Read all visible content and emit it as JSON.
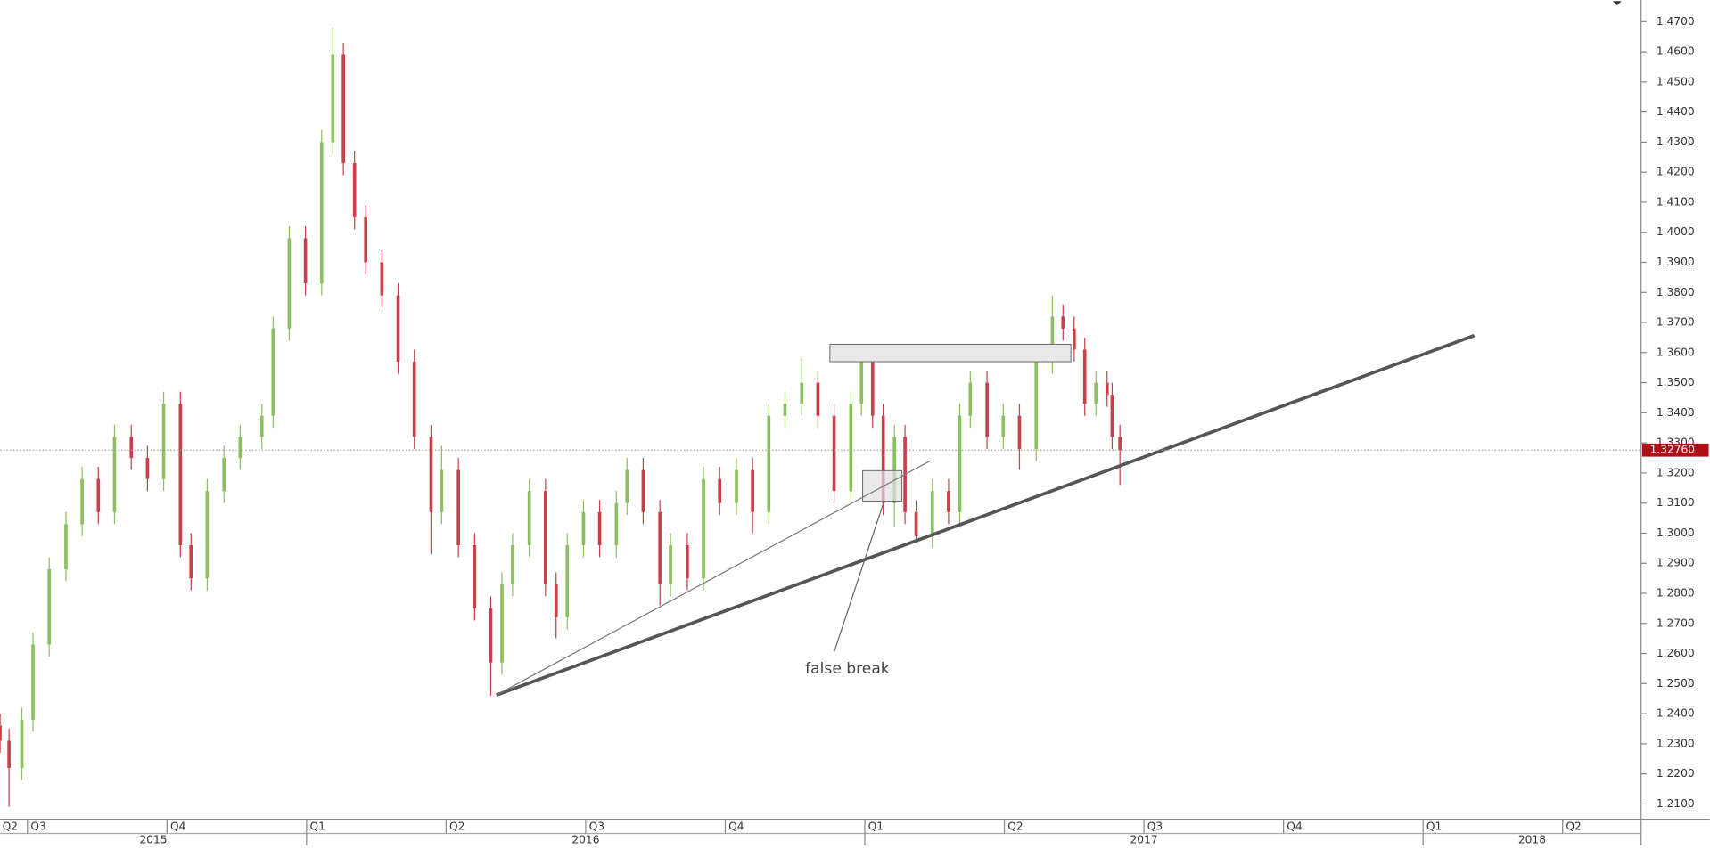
{
  "chart_data": {
    "type": "ohlc",
    "x": [
      2015.451,
      2015.467,
      2015.49,
      2015.51,
      2015.539,
      2015.569,
      2015.598,
      2015.627,
      2015.656,
      2015.686,
      2015.715,
      2015.744,
      2015.774,
      2015.793,
      2015.822,
      2015.852,
      2015.881,
      2015.92,
      2015.94,
      2015.969,
      2015.998,
      2016.027,
      2016.047,
      2016.066,
      2016.086,
      2016.106,
      2016.135,
      2016.164,
      2016.193,
      2016.223,
      2016.242,
      2016.272,
      2016.301,
      2016.33,
      2016.35,
      2016.369,
      2016.399,
      2016.428,
      2016.447,
      2016.467,
      2016.496,
      2016.525,
      2016.555,
      2016.574,
      2016.603,
      2016.633,
      2016.652,
      2016.682,
      2016.711,
      2016.74,
      2016.77,
      2016.799,
      2016.828,
      2016.857,
      2016.887,
      2016.916,
      2016.945,
      2016.975,
      2016.994,
      2017.014,
      2017.033,
      2017.053,
      2017.072,
      2017.092,
      2017.121,
      2017.15,
      2017.17,
      2017.189,
      2017.219,
      2017.248,
      2017.277,
      2017.307,
      2017.336,
      2017.355,
      2017.375,
      2017.394,
      2017.414,
      2017.434,
      2017.443,
      2017.457
    ],
    "open": [
      1.236,
      1.231,
      1.222,
      1.238,
      1.263,
      1.288,
      1.303,
      1.318,
      1.307,
      1.332,
      1.325,
      1.318,
      1.343,
      1.296,
      1.285,
      1.314,
      1.325,
      1.332,
      1.339,
      1.368,
      1.398,
      1.383,
      1.43,
      1.459,
      1.423,
      1.405,
      1.39,
      1.379,
      1.357,
      1.332,
      1.307,
      1.321,
      1.296,
      1.275,
      1.257,
      1.283,
      1.296,
      1.314,
      1.283,
      1.272,
      1.296,
      1.307,
      1.296,
      1.31,
      1.321,
      1.307,
      1.283,
      1.296,
      1.285,
      1.318,
      1.31,
      1.321,
      1.307,
      1.339,
      1.343,
      1.35,
      1.339,
      1.314,
      1.343,
      1.357,
      1.339,
      1.31,
      1.332,
      1.307,
      1.299,
      1.314,
      1.307,
      1.339,
      1.35,
      1.332,
      1.339,
      1.328,
      1.357,
      1.372,
      1.368,
      1.361,
      1.343,
      1.35,
      1.346,
      1.332
    ],
    "high": [
      1.24,
      1.235,
      1.242,
      1.267,
      1.292,
      1.307,
      1.322,
      1.322,
      1.336,
      1.336,
      1.329,
      1.347,
      1.347,
      1.3,
      1.318,
      1.329,
      1.336,
      1.343,
      1.372,
      1.402,
      1.402,
      1.434,
      1.468,
      1.463,
      1.427,
      1.409,
      1.394,
      1.383,
      1.361,
      1.336,
      1.329,
      1.325,
      1.3,
      1.279,
      1.287,
      1.3,
      1.318,
      1.318,
      1.287,
      1.3,
      1.311,
      1.311,
      1.314,
      1.325,
      1.325,
      1.311,
      1.3,
      1.3,
      1.322,
      1.322,
      1.325,
      1.325,
      1.343,
      1.347,
      1.358,
      1.354,
      1.343,
      1.347,
      1.36,
      1.361,
      1.343,
      1.336,
      1.336,
      1.311,
      1.318,
      1.318,
      1.343,
      1.354,
      1.354,
      1.343,
      1.343,
      1.361,
      1.379,
      1.376,
      1.372,
      1.365,
      1.354,
      1.354,
      1.35,
      1.336
    ],
    "low": [
      1.227,
      1.209,
      1.218,
      1.234,
      1.259,
      1.284,
      1.299,
      1.303,
      1.303,
      1.321,
      1.314,
      1.314,
      1.292,
      1.281,
      1.281,
      1.31,
      1.321,
      1.328,
      1.335,
      1.364,
      1.379,
      1.379,
      1.426,
      1.419,
      1.401,
      1.386,
      1.375,
      1.353,
      1.328,
      1.293,
      1.303,
      1.292,
      1.271,
      1.246,
      1.253,
      1.279,
      1.292,
      1.279,
      1.265,
      1.268,
      1.292,
      1.292,
      1.292,
      1.306,
      1.303,
      1.276,
      1.279,
      1.281,
      1.281,
      1.306,
      1.306,
      1.3,
      1.303,
      1.335,
      1.339,
      1.335,
      1.31,
      1.31,
      1.339,
      1.335,
      1.306,
      1.302,
      1.303,
      1.297,
      1.295,
      1.303,
      1.303,
      1.335,
      1.328,
      1.328,
      1.321,
      1.324,
      1.353,
      1.364,
      1.357,
      1.339,
      1.339,
      1.342,
      1.328,
      1.316
    ],
    "close": [
      1.231,
      1.222,
      1.238,
      1.263,
      1.288,
      1.303,
      1.318,
      1.307,
      1.332,
      1.325,
      1.318,
      1.343,
      1.296,
      1.285,
      1.314,
      1.325,
      1.332,
      1.339,
      1.368,
      1.398,
      1.383,
      1.43,
      1.459,
      1.423,
      1.405,
      1.39,
      1.379,
      1.357,
      1.332,
      1.307,
      1.321,
      1.296,
      1.275,
      1.257,
      1.283,
      1.296,
      1.314,
      1.283,
      1.272,
      1.296,
      1.307,
      1.296,
      1.31,
      1.321,
      1.307,
      1.283,
      1.296,
      1.285,
      1.318,
      1.31,
      1.321,
      1.307,
      1.339,
      1.343,
      1.35,
      1.339,
      1.314,
      1.343,
      1.357,
      1.339,
      1.31,
      1.332,
      1.307,
      1.299,
      1.314,
      1.307,
      1.339,
      1.35,
      1.332,
      1.339,
      1.328,
      1.357,
      1.372,
      1.368,
      1.361,
      1.343,
      1.35,
      1.346,
      1.332,
      1.3276
    ],
    "up_color": "#8cbf5e",
    "down_color": "#c9404a",
    "xlim": [
      2015.4512,
      2018.3906
    ],
    "xticks": [
      {
        "value": 2015.25,
        "label": "Q2"
      },
      {
        "value": 2015.5,
        "label": "Q3"
      },
      {
        "value": 2015.75,
        "label": "Q4"
      },
      {
        "value": 2016.0,
        "label": "Q1"
      },
      {
        "value": 2016.25,
        "label": "Q2"
      },
      {
        "value": 2016.5,
        "label": "Q3"
      },
      {
        "value": 2016.75,
        "label": "Q4"
      },
      {
        "value": 2017.0,
        "label": "Q1"
      },
      {
        "value": 2017.25,
        "label": "Q2"
      },
      {
        "value": 2017.5,
        "label": "Q3"
      },
      {
        "value": 2017.75,
        "label": "Q4"
      },
      {
        "value": 2018.0,
        "label": "Q1"
      },
      {
        "value": 2018.25,
        "label": "Q2"
      }
    ],
    "year_ticks": [
      {
        "value": 2015,
        "label": "2015"
      },
      {
        "value": 2016,
        "label": "2016"
      },
      {
        "value": 2017,
        "label": "2017"
      },
      {
        "value": 2018,
        "label": "2018"
      }
    ],
    "ylim": [
      1.2049,
      1.4772
    ],
    "yticks": [
      {
        "value": 1.21,
        "label": "1.2100"
      },
      {
        "value": 1.22,
        "label": "1.2200"
      },
      {
        "value": 1.23,
        "label": "1.2300"
      },
      {
        "value": 1.24,
        "label": "1.2400"
      },
      {
        "value": 1.25,
        "label": "1.2500"
      },
      {
        "value": 1.26,
        "label": "1.2600"
      },
      {
        "value": 1.27,
        "label": "1.2700"
      },
      {
        "value": 1.28,
        "label": "1.2800"
      },
      {
        "value": 1.29,
        "label": "1.2900"
      },
      {
        "value": 1.3,
        "label": "1.3000"
      },
      {
        "value": 1.31,
        "label": "1.3100"
      },
      {
        "value": 1.32,
        "label": "1.3200"
      },
      {
        "value": 1.33,
        "label": "1.3300"
      },
      {
        "value": 1.34,
        "label": "1.3400"
      },
      {
        "value": 1.35,
        "label": "1.3500"
      },
      {
        "value": 1.36,
        "label": "1.3600"
      },
      {
        "value": 1.37,
        "label": "1.3700"
      },
      {
        "value": 1.38,
        "label": "1.3800"
      },
      {
        "value": 1.39,
        "label": "1.3900"
      },
      {
        "value": 1.4,
        "label": "1.4000"
      },
      {
        "value": 1.41,
        "label": "1.4100"
      },
      {
        "value": 1.42,
        "label": "1.4200"
      },
      {
        "value": 1.43,
        "label": "1.4300"
      },
      {
        "value": 1.44,
        "label": "1.4400"
      },
      {
        "value": 1.45,
        "label": "1.4500"
      },
      {
        "value": 1.46,
        "label": "1.4600"
      },
      {
        "value": 1.47,
        "label": "1.4700"
      }
    ],
    "last_price": {
      "value": 1.3276,
      "label": "1.32760"
    },
    "annotation": "false break"
  }
}
